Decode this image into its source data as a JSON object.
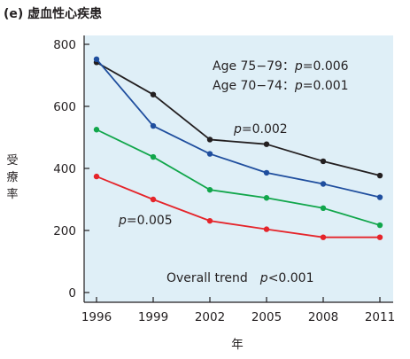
{
  "panel_title": "(e) 虚血性心疾患",
  "chart_data": {
    "type": "line",
    "title": "(e) 虚血性心疾患",
    "xlabel": "年",
    "ylabel": "受療率",
    "x": [
      1996,
      1999,
      2002,
      2005,
      2008,
      2011
    ],
    "x_tick_labels": [
      "1996",
      "1999",
      "2002",
      "2005",
      "2008",
      "2011"
    ],
    "y_ticks": [
      0,
      200,
      400,
      600,
      800
    ],
    "y_tick_labels": [
      "0",
      "200",
      "400",
      "600",
      "800"
    ],
    "ylim": [
      0,
      800
    ],
    "grid": false,
    "background": "#dfeff7",
    "series": [
      {
        "color": "#231f20",
        "values": [
          742,
          638,
          493,
          478,
          423,
          377
        ]
      },
      {
        "color": "#1f4e9e",
        "values": [
          752,
          537,
          447,
          386,
          350,
          307
        ]
      },
      {
        "color": "#11a64b",
        "values": [
          525,
          437,
          331,
          305,
          272,
          217
        ]
      },
      {
        "color": "#e5242a",
        "values": [
          374,
          300,
          231,
          204,
          178,
          178
        ]
      }
    ],
    "annotations": {
      "age_75_79": {
        "prefix": "Age 75−79：",
        "p": "p",
        "rest": "=0.006"
      },
      "age_70_74": {
        "prefix": "Age 70−74：",
        "p": "p",
        "rest": "=0.001"
      },
      "p_002": {
        "p": "p",
        "rest": "=0.002"
      },
      "p_005": {
        "p": "p",
        "rest": "=0.005"
      },
      "overall": {
        "prefix": "Overall trend",
        "p": "p",
        "rest": "<0.001"
      }
    }
  }
}
